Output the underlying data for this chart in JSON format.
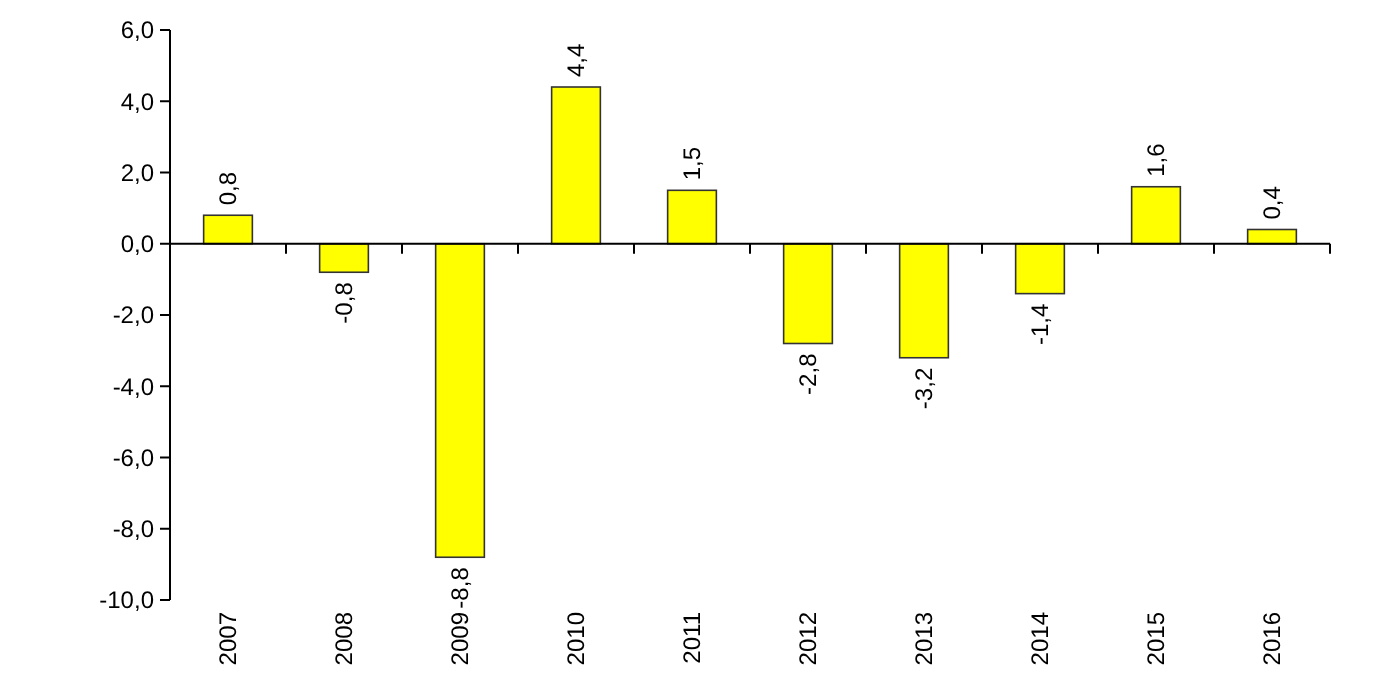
{
  "chart_data": {
    "type": "bar",
    "categories": [
      "2007",
      "2008",
      "2009",
      "2010",
      "2011",
      "2012",
      "2013",
      "2014",
      "2015",
      "2016"
    ],
    "values": [
      0.8,
      -0.8,
      -8.8,
      4.4,
      1.5,
      -2.8,
      -3.2,
      -1.4,
      1.6,
      0.4
    ],
    "value_labels": [
      "0,8",
      "-0,8",
      "-8,8",
      "4,4",
      "1,5",
      "-2,8",
      "-3,2",
      "-1,4",
      "1,6",
      "0,4"
    ],
    "color": "#ffff00",
    "ylim": [
      -10,
      6
    ],
    "yticks": [
      {
        "value": -10,
        "label": "-10,0"
      },
      {
        "value": -8,
        "label": "-8,0"
      },
      {
        "value": -6,
        "label": "-6,0"
      },
      {
        "value": -4,
        "label": "-4,0"
      },
      {
        "value": -2,
        "label": "-2,0"
      },
      {
        "value": 0,
        "label": "0,0"
      },
      {
        "value": 2,
        "label": "2,0"
      },
      {
        "value": 4,
        "label": "4,0"
      },
      {
        "value": 6,
        "label": "6,0"
      }
    ]
  }
}
